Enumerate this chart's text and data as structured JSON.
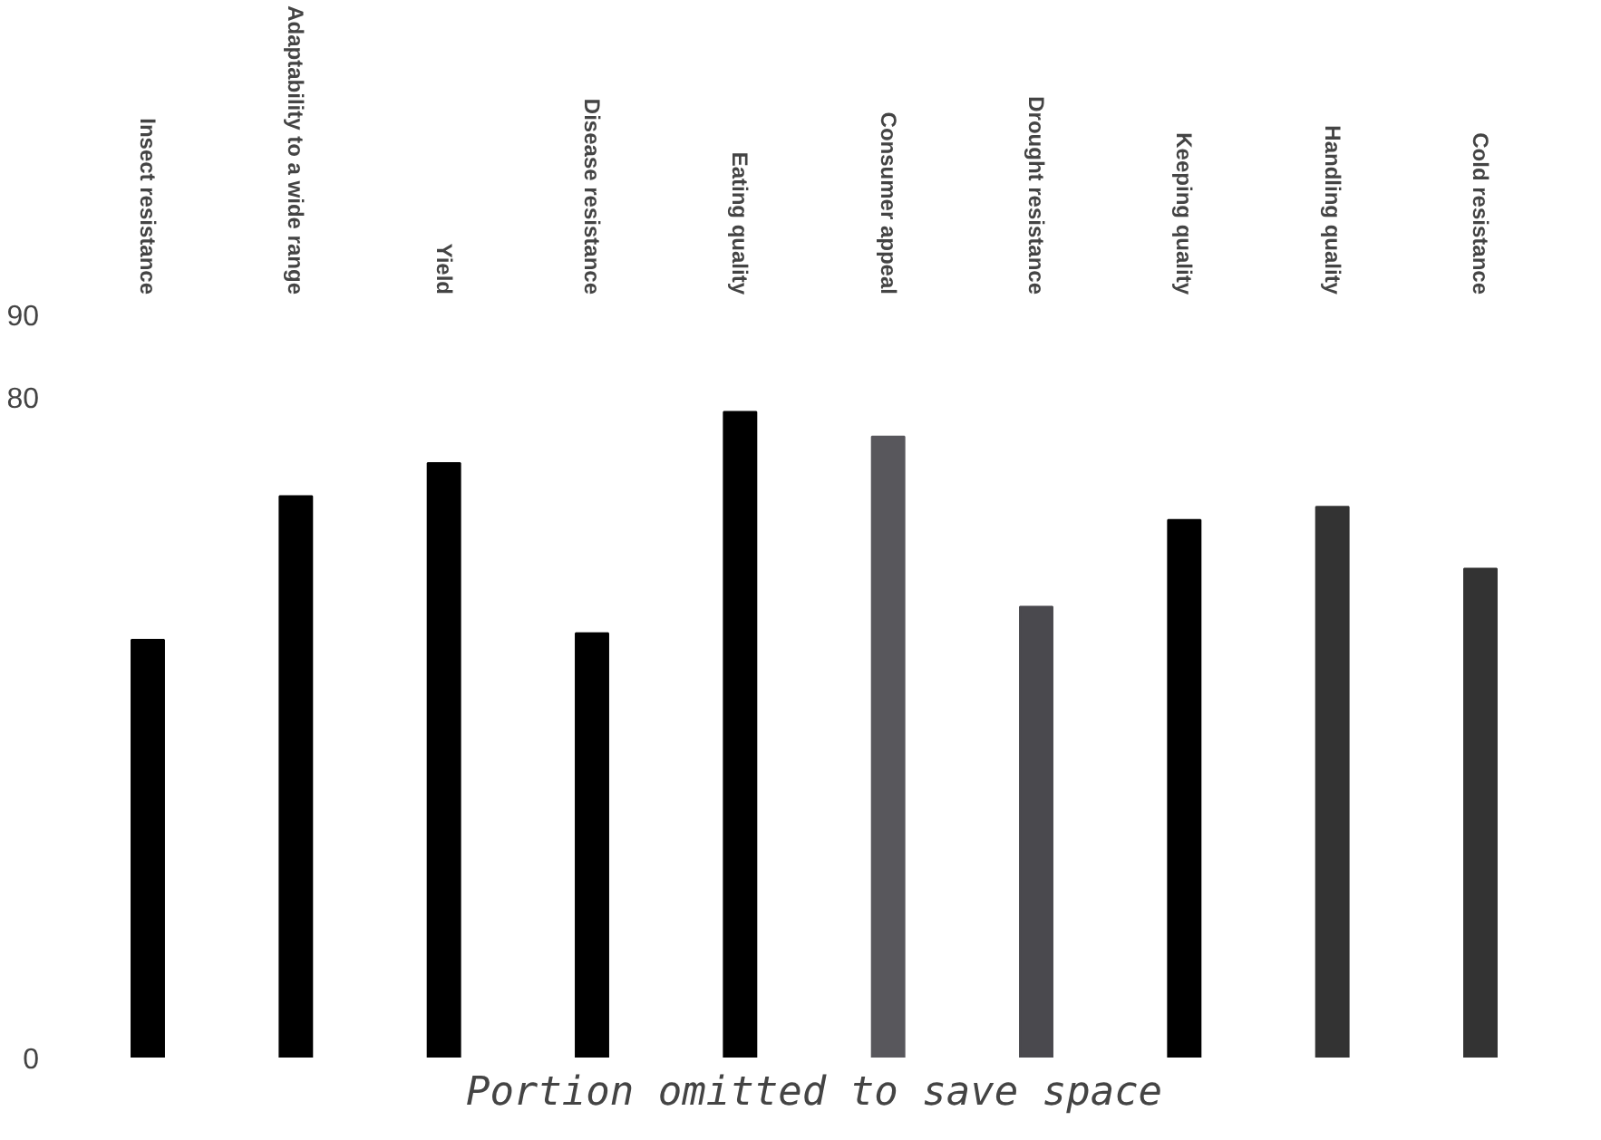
{
  "chart_data": {
    "type": "bar",
    "categories": [
      "Insect resistance",
      "Adaptability to a wide range",
      "Yield",
      "Disease resistance",
      "Eating quality",
      "Consumer appeal",
      "Drought resistance",
      "Keeping quality",
      "Handling quality",
      "Cold resistance"
    ],
    "values": [
      50.6,
      68,
      72,
      51.4,
      78.2,
      75.2,
      54.6,
      65.1,
      66.7,
      59.2
    ],
    "colors": [
      "#000000",
      "#000000",
      "#000000",
      "#000000",
      "#000000",
      "#58575c",
      "#4a494e",
      "#000000",
      "#333333",
      "#333333"
    ],
    "ylim": [
      0,
      90
    ],
    "yticks": [
      0,
      80,
      90
    ],
    "grid": false,
    "annotations": [
      "Portion omitted to save space"
    ]
  }
}
